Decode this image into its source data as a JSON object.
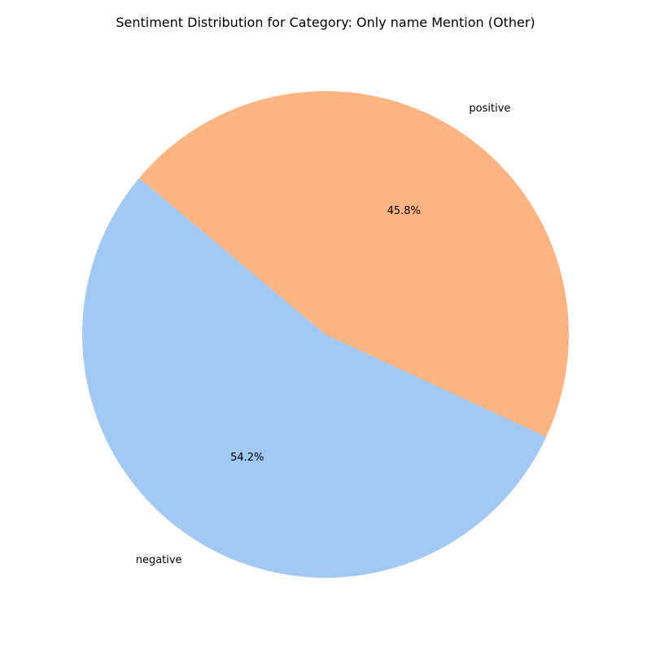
{
  "chart_data": {
    "type": "pie",
    "title": "Sentiment Distribution for Category: Only name Mention (Other)",
    "start_angle_deg": 140,
    "direction": "counterclockwise",
    "slices": [
      {
        "label": "negative",
        "value": 54.2,
        "pct_label": "54.2%",
        "color": "#a1c9f4"
      },
      {
        "label": "positive",
        "value": 45.8,
        "pct_label": "45.8%",
        "color": "#ffb482"
      }
    ]
  }
}
